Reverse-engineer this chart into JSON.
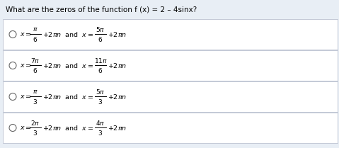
{
  "title": "What are the zeros of the function f (x) = 2 – 4sinx?",
  "title_fontsize": 7.5,
  "bg_color": "#e8eef5",
  "option_bg": "#ffffff",
  "text_color": "#000000",
  "math_color": "#000000",
  "option_parts": [
    [
      "π",
      "6",
      "5π",
      "6"
    ],
    [
      "7π",
      "6",
      "11π",
      "6"
    ],
    [
      "π",
      "3",
      "5π",
      "3"
    ],
    [
      "2π",
      "3",
      "4π",
      "3"
    ]
  ],
  "fig_width": 4.79,
  "fig_height": 2.09,
  "dpi": 100
}
